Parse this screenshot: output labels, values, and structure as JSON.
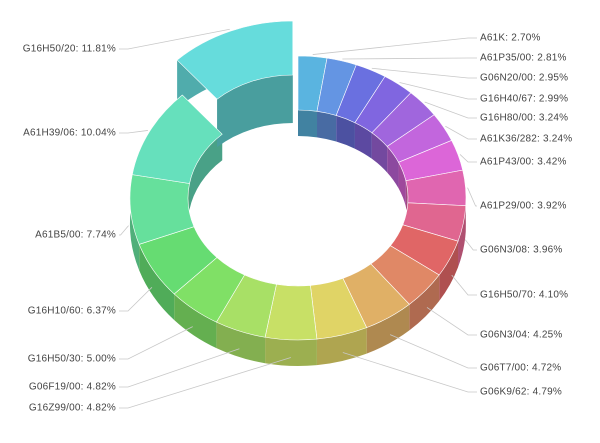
{
  "chart_data": {
    "type": "donut3d",
    "categories": [
      "A61K",
      "A61P35/00",
      "G06N20/00",
      "G16H40/67",
      "G16H80/00",
      "A61K36/282",
      "A61P43/00",
      "A61P29/00",
      "G06N3/08",
      "G16H50/70",
      "G06N3/04",
      "G06T7/00",
      "G06K9/62",
      "G16Z99/00",
      "G06F19/00",
      "G16H50/30",
      "G16H10/60",
      "A61B5/00",
      "A61H39/06",
      "G16H50/20"
    ],
    "values": [
      2.7,
      2.81,
      2.95,
      2.99,
      3.24,
      3.24,
      3.42,
      3.92,
      3.96,
      4.1,
      4.25,
      4.72,
      4.79,
      4.82,
      4.82,
      5.0,
      6.37,
      7.74,
      10.04,
      11.81
    ],
    "value_labels": [
      "A61K: 2.70%",
      "A61P35/00: 2.81%",
      "G06N20/00: 2.95%",
      "G16H40/67: 2.99%",
      "G16H80/00: 3.24%",
      "A61K36/282: 3.24%",
      "A61P43/00: 3.42%",
      "A61P29/00: 3.92%",
      "G06N3/08: 3.96%",
      "G16H50/70: 4.10%",
      "G06N3/04: 4.25%",
      "G06T7/00: 4.72%",
      "G06K9/62: 4.79%",
      "G16Z99/00: 4.82%",
      "G06F19/00: 4.82%",
      "G16H50/30: 5.00%",
      "G16H10/60: 6.37%",
      "A61B5/00: 7.74%",
      "A61H39/06: 10.04%",
      "G16H50/20: 11.81%"
    ],
    "colors": [
      "#5ab4e0",
      "#6495e3",
      "#6a70e0",
      "#8066e0",
      "#a066dd",
      "#c266dd",
      "#dc66d8",
      "#e066b0",
      "#e06690",
      "#e06666",
      "#e08866",
      "#e0b066",
      "#e0d466",
      "#c8e066",
      "#a8e066",
      "#80e066",
      "#66dc72",
      "#66e09c",
      "#66e0bc",
      "#66dcdc"
    ],
    "exploded": "G16H50/20"
  }
}
